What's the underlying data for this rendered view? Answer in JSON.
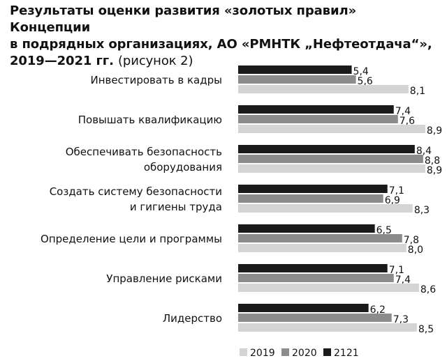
{
  "chart_data": {
    "type": "bar",
    "orientation": "horizontal",
    "title_lines": [
      "Результаты оценки развития «золотых правил» Концепции",
      "в подрядных организациях, АО «РМНТК „Нефтеотдача“»,",
      "2019—2021 гг."
    ],
    "title_suffix": "(рисунок 2)",
    "categories": [
      [
        "Инвестировать в кадры"
      ],
      [
        "Повышать квалификацию"
      ],
      [
        "Обеспечивать безопасность",
        "оборудования"
      ],
      [
        "Создать систему безопасности",
        "и гигиены труда"
      ],
      [
        "Определение цели и программы"
      ],
      [
        "Управление рисками"
      ],
      [
        "Лидерство"
      ]
    ],
    "series": [
      {
        "name": "2121",
        "color": "#1a1a1a",
        "values": [
          5.4,
          7.4,
          8.4,
          7.1,
          6.5,
          7.1,
          6.2
        ],
        "labels": [
          "5,4",
          "7,4",
          "8,4",
          "7,1",
          "6,5",
          "7,1",
          "6,2"
        ]
      },
      {
        "name": "2020",
        "color": "#8c8c8c",
        "values": [
          5.6,
          7.6,
          8.8,
          6.9,
          7.8,
          7.4,
          7.3
        ],
        "labels": [
          "5,6",
          "7,6",
          "8,8",
          "6,9",
          "7,8",
          "7,4",
          "7,3"
        ]
      },
      {
        "name": "2019",
        "color": "#d4d4d4",
        "values": [
          8.1,
          8.9,
          8.9,
          8.3,
          8.0,
          8.6,
          8.5
        ],
        "labels": [
          "8,1",
          "8,9",
          "8,9",
          "8,3",
          "8,0",
          "8,6",
          "8,5"
        ]
      }
    ],
    "legend": [
      {
        "name": "2019",
        "color": "#d4d4d4"
      },
      {
        "name": "2020",
        "color": "#8c8c8c"
      },
      {
        "name": "2121",
        "color": "#1a1a1a"
      }
    ],
    "xlim": [
      0,
      9
    ],
    "legend_position": "bottom",
    "grid": false
  }
}
